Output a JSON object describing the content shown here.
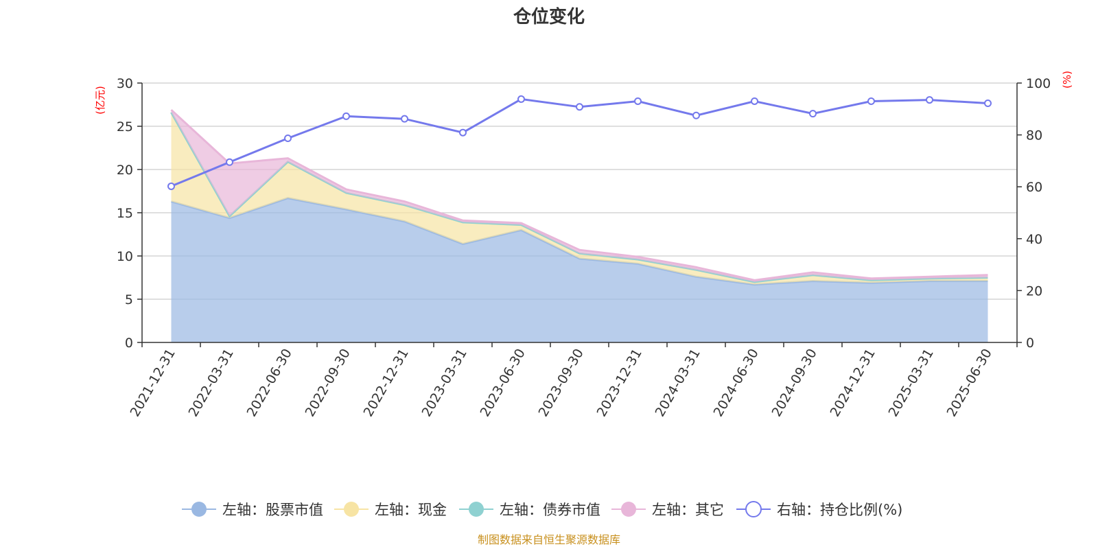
{
  "chart_data": {
    "type": "area",
    "title": "仓位变化",
    "categories": [
      "2021-12-31",
      "2022-03-31",
      "2022-06-30",
      "2022-09-30",
      "2022-12-31",
      "2023-03-31",
      "2023-06-30",
      "2023-09-30",
      "2023-12-31",
      "2024-03-31",
      "2024-06-30",
      "2024-09-30",
      "2024-12-31",
      "2025-03-31",
      "2025-06-30"
    ],
    "left_axis": {
      "unit": "(亿元)",
      "ylim": [
        0,
        30
      ],
      "ticks": [
        0,
        5,
        10,
        15,
        20,
        25,
        30
      ]
    },
    "right_axis": {
      "unit": "(%)",
      "ylim": [
        0,
        100
      ],
      "ticks": [
        0,
        20,
        40,
        60,
        80,
        100
      ]
    },
    "grid": true,
    "stacked": true,
    "series": [
      {
        "name": "左轴：股票市值",
        "axis": "left",
        "type": "area",
        "color": "#9ab8e2",
        "values": [
          16.3,
          14.4,
          16.7,
          15.4,
          14.0,
          11.4,
          13.0,
          9.7,
          9.1,
          7.6,
          6.7,
          7.1,
          6.9,
          7.1,
          7.1
        ]
      },
      {
        "name": "左轴：现金",
        "axis": "left",
        "type": "area",
        "color": "#f7e4a4",
        "values": [
          10.3,
          0.2,
          4.2,
          1.9,
          1.9,
          2.5,
          0.6,
          0.6,
          0.5,
          0.8,
          0.3,
          0.7,
          0.3,
          0.3,
          0.4
        ]
      },
      {
        "name": "左轴：债券市值",
        "axis": "left",
        "type": "area",
        "color": "#8fd1d1",
        "values": [
          0,
          0,
          0,
          0,
          0,
          0,
          0,
          0,
          0,
          0,
          0,
          0,
          0,
          0,
          0
        ]
      },
      {
        "name": "左轴：其它",
        "axis": "left",
        "type": "area",
        "color": "#e8b6d9",
        "values": [
          0.3,
          6.1,
          0.4,
          0.4,
          0.4,
          0.2,
          0.2,
          0.4,
          0.3,
          0.3,
          0.2,
          0.3,
          0.2,
          0.2,
          0.3
        ]
      },
      {
        "name": "右轴：持仓比例(%)",
        "axis": "right",
        "type": "line",
        "color": "#7479ec",
        "values": [
          60.2,
          69.5,
          78.7,
          87.2,
          86.2,
          80.9,
          93.8,
          90.8,
          93.0,
          87.5,
          93.0,
          88.2,
          93.0,
          93.5,
          92.2
        ]
      }
    ],
    "legend_position": "bottom"
  },
  "footer": {
    "source": "制图数据来自恒生聚源数据库"
  },
  "colors": {
    "axis": "#333333",
    "grid": "#cccccc",
    "unit_label": "#ff0000",
    "source_text": "#c8901e"
  }
}
